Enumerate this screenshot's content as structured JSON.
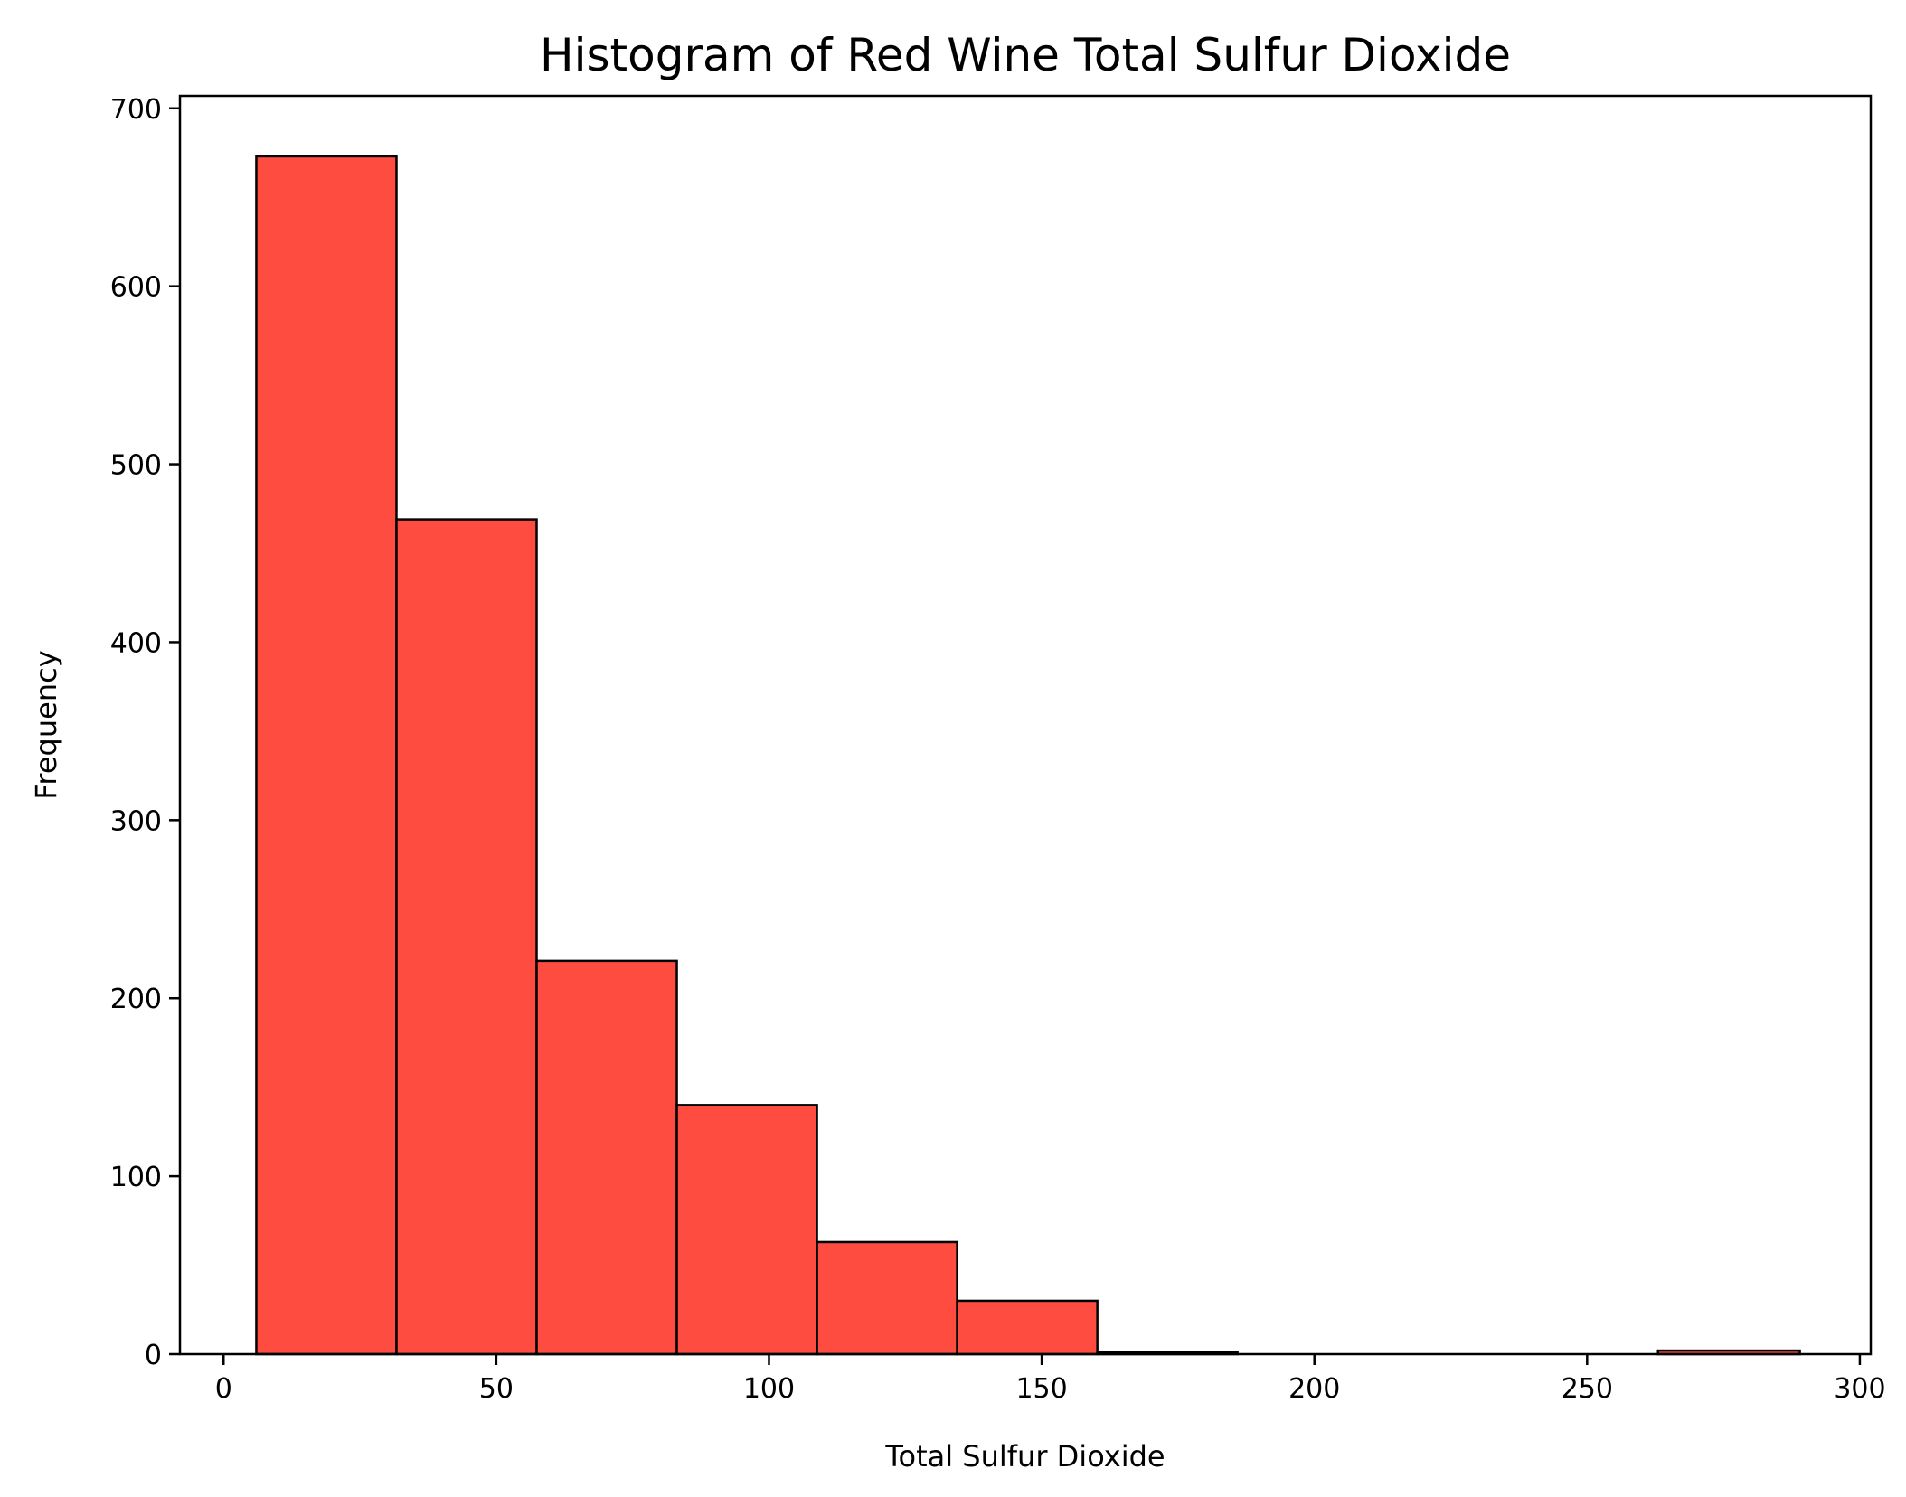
{
  "chart_data": {
    "type": "bar",
    "title": "Histogram of Red Wine Total Sulfur Dioxide",
    "xlabel": "Total Sulfur Dioxide",
    "ylabel": "Frequency",
    "bin_edges": [
      6,
      31.7,
      57.4,
      83.1,
      108.8,
      134.5,
      160.2,
      185.9,
      211.6,
      237.3,
      263,
      289
    ],
    "values": [
      673,
      469,
      221,
      140,
      63,
      30,
      1,
      0,
      0,
      0,
      2
    ],
    "xlim": [
      -8,
      302
    ],
    "ylim": [
      0,
      707
    ],
    "xticks": [
      0,
      50,
      100,
      150,
      200,
      250,
      300
    ],
    "yticks": [
      0,
      100,
      200,
      300,
      400,
      500,
      600,
      700
    ],
    "bar_color": "#ff4c40",
    "edge_color": "#000000",
    "grid": false,
    "legend": "none"
  }
}
